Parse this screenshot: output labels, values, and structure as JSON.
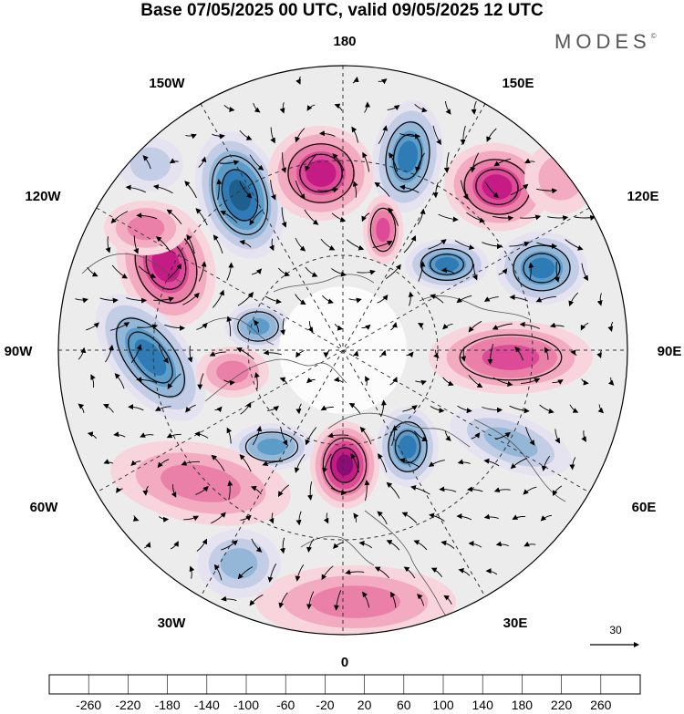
{
  "title": "Base 07/05/2025 00 UTC, valid 09/05/2025 12 UTC",
  "brand": "MODES",
  "brand_mark": "©",
  "longitude_labels": {
    "top": "180",
    "bottom": "0",
    "left": "90W",
    "right": "90E",
    "upper_left_1": "150W",
    "upper_left_2": "120W",
    "lower_left_1": "60W",
    "lower_left_2": "30W",
    "upper_right_1": "150E",
    "upper_right_2": "120E",
    "lower_right_1": "60E",
    "lower_right_2": "30E"
  },
  "reference_vector": {
    "value": "30"
  },
  "colorbar": {
    "labels": [
      "-260",
      "-220",
      "-180",
      "-140",
      "-100",
      "-60",
      "-20",
      "20",
      "60",
      "100",
      "140",
      "180",
      "220",
      "260"
    ],
    "colors": [
      "#163a5c",
      "#1f5f8e",
      "#2f7bb5",
      "#5b9cc9",
      "#94b7d8",
      "#c4cde6",
      "#e6e3f1",
      "#ffffff",
      "#f8d4dc",
      "#f2abc0",
      "#ea7fa8",
      "#dd4a98",
      "#c41b84",
      "#8a0d75",
      "#5c0a6e"
    ]
  },
  "anomaly_centers": [
    {
      "sign": "negative",
      "level": 5
    },
    {
      "sign": "positive",
      "level": 4
    },
    {
      "sign": "negative",
      "level": 4
    },
    {
      "sign": "positive",
      "level": 4
    },
    {
      "sign": "positive",
      "level": 3
    },
    {
      "sign": "positive",
      "level": 4
    },
    {
      "sign": "negative",
      "level": 4
    },
    {
      "sign": "negative",
      "level": 4
    },
    {
      "sign": "negative",
      "level": 3
    },
    {
      "sign": "positive",
      "level": 3
    },
    {
      "sign": "negative",
      "level": 4
    },
    {
      "sign": "positive",
      "level": 5
    },
    {
      "sign": "negative",
      "level": 4
    },
    {
      "sign": "positive",
      "level": 2
    },
    {
      "sign": "negative",
      "level": 3
    },
    {
      "sign": "positive",
      "level": 2
    },
    {
      "sign": "positive",
      "level": 2
    },
    {
      "sign": "positive",
      "level": 2
    },
    {
      "sign": "negative",
      "level": 2
    },
    {
      "sign": "negative",
      "level": 2
    },
    {
      "sign": "positive",
      "level": 1
    },
    {
      "sign": "negative",
      "level": 1
    }
  ]
}
